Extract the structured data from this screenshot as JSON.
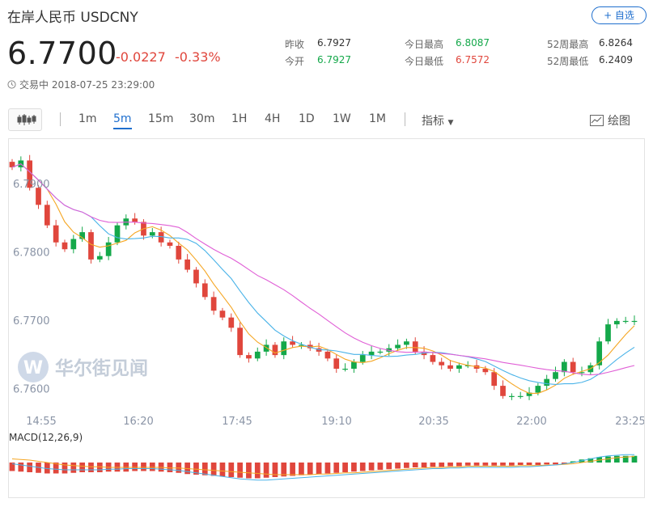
{
  "header": {
    "title": "在岸人民币  USDCNY",
    "follow_label": "+ 自选",
    "price": "6.7700",
    "change": "-0.0227",
    "change_pct": "-0.33%",
    "status": "交易中 2018-07-25 23:29:00"
  },
  "stats": [
    {
      "label": "昨收",
      "value": "6.7927",
      "tone": "neutral"
    },
    {
      "label": "今开",
      "value": "6.7927",
      "tone": "down"
    },
    {
      "label": "今日最高",
      "value": "6.8087",
      "tone": "down"
    },
    {
      "label": "今日最低",
      "value": "6.7572",
      "tone": "up"
    },
    {
      "label": "52周最高",
      "value": "6.8264",
      "tone": "neutral"
    },
    {
      "label": "52周最低",
      "value": "6.2409",
      "tone": "neutral"
    }
  ],
  "toolbar": {
    "periods": [
      "1m",
      "5m",
      "15m",
      "30m",
      "1H",
      "4H",
      "1D",
      "1W",
      "1M"
    ],
    "active_period": "5m",
    "indicator_label": "指标",
    "draw_label": "绘图"
  },
  "watermark": "华尔街见闻",
  "colors": {
    "up": "#e0463c",
    "down": "#14a84a",
    "accent": "#1f6fce",
    "ma1": "#f5a623",
    "ma2": "#4ab3e8",
    "ma3": "#e05fd6"
  },
  "chart_data": {
    "type": "candlestick",
    "xlabels": [
      "14:55",
      "16:20",
      "17:45",
      "19:10",
      "20:35",
      "22:00",
      "23:25"
    ],
    "y_ticks": [
      "6.7900",
      "6.7800",
      "6.7700",
      "6.7600"
    ],
    "ylim": [
      6.7585,
      6.7945
    ],
    "close": [
      6.7925,
      6.7935,
      6.7895,
      6.787,
      6.784,
      6.7815,
      6.7805,
      6.782,
      6.783,
      6.779,
      6.7795,
      6.7815,
      6.784,
      6.785,
      6.7845,
      6.7825,
      6.783,
      6.7815,
      6.781,
      6.779,
      6.7775,
      6.7755,
      6.7735,
      6.7715,
      6.7705,
      6.769,
      6.765,
      6.7645,
      6.7655,
      6.7665,
      6.765,
      6.767,
      6.7665,
      6.7665,
      6.766,
      6.7655,
      6.7645,
      6.763,
      6.763,
      6.764,
      6.765,
      6.7655,
      6.7655,
      6.766,
      6.7665,
      6.767,
      6.7655,
      6.765,
      6.764,
      6.7635,
      6.763,
      6.7635,
      6.7635,
      6.763,
      6.7625,
      6.7605,
      6.759,
      6.759,
      6.759,
      6.7595,
      6.7605,
      6.7615,
      6.7625,
      6.764,
      6.7625,
      6.7625,
      6.7635,
      6.767,
      6.7695,
      6.77,
      6.77,
      6.77
    ],
    "macd": {
      "label": "MACD(12,26,9)",
      "histogram": [
        -1.4,
        -1.5,
        -1.6,
        -1.7,
        -1.8,
        -1.8,
        -1.8,
        -1.7,
        -1.6,
        -1.6,
        -1.6,
        -1.5,
        -1.5,
        -1.5,
        -1.4,
        -1.4,
        -1.4,
        -1.5,
        -1.6,
        -1.7,
        -1.9,
        -2.0,
        -2.1,
        -2.2,
        -2.3,
        -2.4,
        -2.5,
        -2.6,
        -2.6,
        -2.5,
        -2.4,
        -2.3,
        -2.2,
        -2.1,
        -2.0,
        -1.9,
        -1.8,
        -1.7,
        -1.6,
        -1.5,
        -1.4,
        -1.3,
        -1.2,
        -1.1,
        -1.0,
        -0.9,
        -0.8,
        -0.8,
        -0.7,
        -0.7,
        -0.6,
        -0.6,
        -0.5,
        -0.5,
        -0.5,
        -0.5,
        -0.5,
        -0.5,
        -0.4,
        -0.4,
        -0.4,
        -0.3,
        -0.3,
        -0.2,
        0.2,
        0.5,
        0.7,
        0.9,
        1.0,
        1.1,
        1.1,
        1.1
      ],
      "dif": [
        -0.2,
        -0.4,
        -0.6,
        -0.8,
        -1.0,
        -1.1,
        -1.2,
        -1.2,
        -1.2,
        -1.2,
        -1.2,
        -1.1,
        -1.1,
        -1.0,
        -1.0,
        -1.0,
        -1.0,
        -1.1,
        -1.2,
        -1.3,
        -1.5,
        -1.7,
        -1.9,
        -2.1,
        -2.3,
        -2.5,
        -2.7,
        -2.8,
        -2.9,
        -2.9,
        -2.8,
        -2.7,
        -2.6,
        -2.5,
        -2.4,
        -2.3,
        -2.2,
        -2.1,
        -2.0,
        -1.9,
        -1.8,
        -1.7,
        -1.6,
        -1.5,
        -1.4,
        -1.3,
        -1.2,
        -1.1,
        -1.0,
        -1.0,
        -0.9,
        -0.9,
        -0.8,
        -0.8,
        -0.8,
        -0.8,
        -0.8,
        -0.8,
        -0.7,
        -0.7,
        -0.6,
        -0.5,
        -0.4,
        -0.2,
        0.0,
        0.3,
        0.6,
        0.9,
        1.1,
        1.2,
        1.3,
        1.3
      ],
      "dea": [
        0.6,
        0.5,
        0.4,
        0.2,
        0.0,
        -0.2,
        -0.4,
        -0.5,
        -0.6,
        -0.7,
        -0.7,
        -0.8,
        -0.8,
        -0.8,
        -0.8,
        -0.8,
        -0.8,
        -0.8,
        -0.9,
        -0.9,
        -1.0,
        -1.1,
        -1.2,
        -1.3,
        -1.4,
        -1.5,
        -1.6,
        -1.7,
        -1.8,
        -1.9,
        -2.0,
        -2.0,
        -2.0,
        -2.0,
        -2.0,
        -1.9,
        -1.9,
        -1.8,
        -1.7,
        -1.7,
        -1.6,
        -1.5,
        -1.4,
        -1.3,
        -1.2,
        -1.1,
        -1.0,
        -0.9,
        -0.8,
        -0.8,
        -0.7,
        -0.7,
        -0.6,
        -0.6,
        -0.6,
        -0.6,
        -0.6,
        -0.6,
        -0.5,
        -0.5,
        -0.5,
        -0.4,
        -0.4,
        -0.3,
        -0.2,
        0.0,
        0.2,
        0.4,
        0.6,
        0.8,
        0.9,
        1.0
      ]
    }
  }
}
